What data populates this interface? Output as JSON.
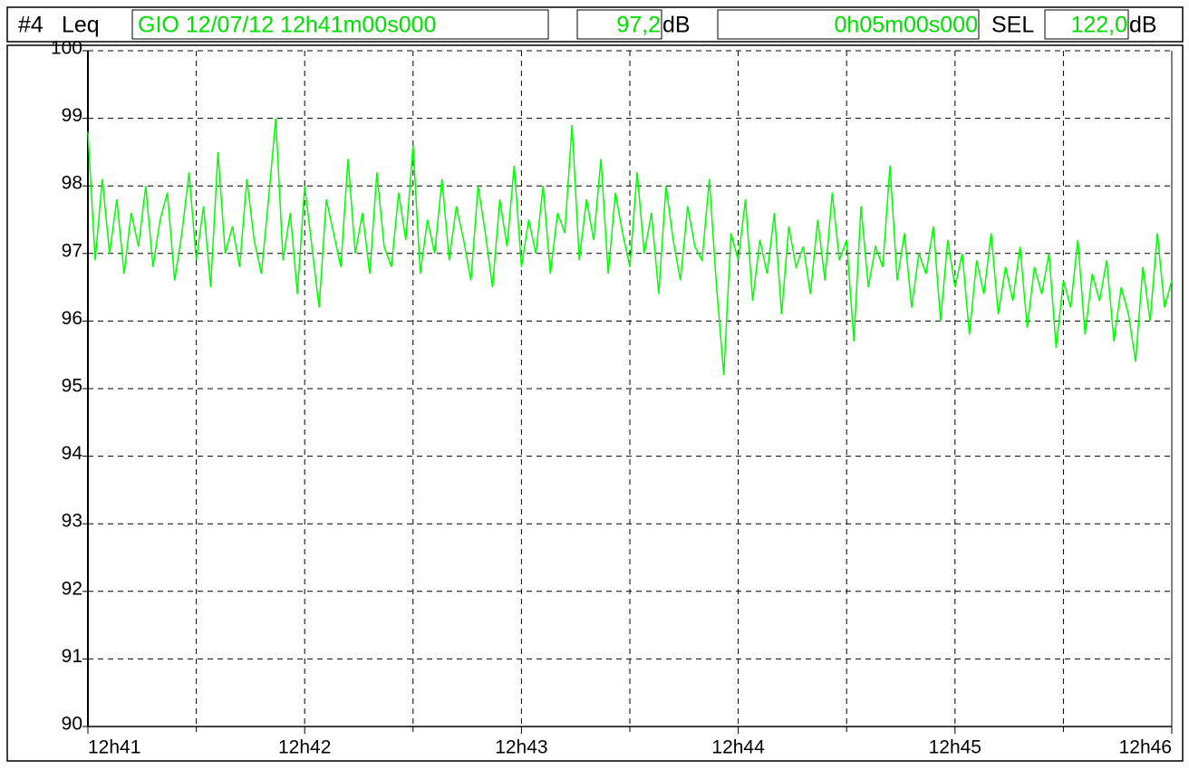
{
  "header": {
    "channel": "#4",
    "metric": "Leq",
    "start": "GIO 12/07/12 12h41m00s000",
    "leq_value": "97,2",
    "leq_unit": "dB",
    "duration": "0h05m00s000",
    "sel_label": "SEL",
    "sel_value": "122,0",
    "sel_unit": "dB"
  },
  "chart_data": {
    "type": "line",
    "color": "#00ff00",
    "grid": true,
    "xlim": [
      0,
      300
    ],
    "xticks": [
      {
        "value": 0,
        "label": "12h41"
      },
      {
        "value": 60,
        "label": "12h42"
      },
      {
        "value": 120,
        "label": "12h43"
      },
      {
        "value": 180,
        "label": "12h44"
      },
      {
        "value": 240,
        "label": "12h45"
      },
      {
        "value": 300,
        "label": "12h46"
      }
    ],
    "xminor": [
      30,
      90,
      150,
      210,
      270
    ],
    "ylim": [
      90,
      100
    ],
    "yticks": [
      90,
      91,
      92,
      93,
      94,
      95,
      96,
      97,
      98,
      99,
      100
    ],
    "x": [
      0,
      2,
      4,
      6,
      8,
      10,
      12,
      14,
      16,
      18,
      20,
      22,
      24,
      26,
      28,
      30,
      32,
      34,
      36,
      38,
      40,
      42,
      44,
      46,
      48,
      50,
      52,
      54,
      56,
      58,
      60,
      62,
      64,
      66,
      68,
      70,
      72,
      74,
      76,
      78,
      80,
      82,
      84,
      86,
      88,
      90,
      92,
      94,
      96,
      98,
      100,
      102,
      104,
      106,
      108,
      110,
      112,
      114,
      116,
      118,
      120,
      122,
      124,
      126,
      128,
      130,
      132,
      134,
      136,
      138,
      140,
      142,
      144,
      146,
      148,
      150,
      152,
      154,
      156,
      158,
      160,
      162,
      164,
      166,
      168,
      170,
      172,
      174,
      176,
      178,
      180,
      182,
      184,
      186,
      188,
      190,
      192,
      194,
      196,
      198,
      200,
      202,
      204,
      206,
      208,
      210,
      212,
      214,
      216,
      218,
      220,
      222,
      224,
      226,
      228,
      230,
      232,
      234,
      236,
      238,
      240,
      242,
      244,
      246,
      248,
      250,
      252,
      254,
      256,
      258,
      260,
      262,
      264,
      266,
      268,
      270,
      272,
      274,
      276,
      278,
      280,
      282,
      284,
      286,
      288,
      290,
      292,
      294,
      296,
      298,
      300
    ],
    "values": [
      98.8,
      96.9,
      98.1,
      97.0,
      97.8,
      96.7,
      97.6,
      97.1,
      98.0,
      96.8,
      97.5,
      97.9,
      96.6,
      97.3,
      98.2,
      96.9,
      97.7,
      96.5,
      98.5,
      97.0,
      97.4,
      96.8,
      98.1,
      97.2,
      96.7,
      97.8,
      99.0,
      96.9,
      97.6,
      96.4,
      98.0,
      97.1,
      96.2,
      97.8,
      97.3,
      96.8,
      98.4,
      97.0,
      97.6,
      96.7,
      98.2,
      97.1,
      96.8,
      97.9,
      97.2,
      98.6,
      96.7,
      97.5,
      97.0,
      98.1,
      96.9,
      97.7,
      97.2,
      96.6,
      98.0,
      97.3,
      96.5,
      97.8,
      97.1,
      98.3,
      96.8,
      97.5,
      97.0,
      98.0,
      96.7,
      97.6,
      97.3,
      98.9,
      96.9,
      97.8,
      97.2,
      98.4,
      96.7,
      97.9,
      97.3,
      96.8,
      98.2,
      97.0,
      97.6,
      96.4,
      98.0,
      97.2,
      96.6,
      97.7,
      97.1,
      96.9,
      98.1,
      96.5,
      95.2,
      97.3,
      96.9,
      97.8,
      96.3,
      97.2,
      96.7,
      97.6,
      96.1,
      97.4,
      96.8,
      97.1,
      96.4,
      97.5,
      96.6,
      97.9,
      96.9,
      97.2,
      95.7,
      97.7,
      96.5,
      97.1,
      96.8,
      98.3,
      96.6,
      97.3,
      96.2,
      97.0,
      96.7,
      97.4,
      96.0,
      97.2,
      96.5,
      97.0,
      95.8,
      96.9,
      96.4,
      97.3,
      96.1,
      96.8,
      96.3,
      97.1,
      95.9,
      96.8,
      96.4,
      97.0,
      95.6,
      96.6,
      96.2,
      97.2,
      95.8,
      96.7,
      96.3,
      96.9,
      95.7,
      96.5,
      96.1,
      95.4,
      96.8,
      96.0,
      97.3,
      96.2,
      96.6
    ]
  }
}
